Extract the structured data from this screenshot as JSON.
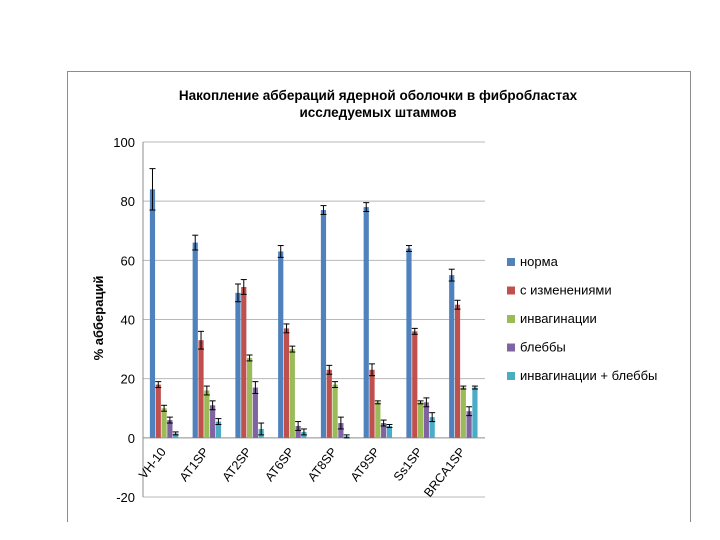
{
  "chart_data": {
    "type": "bar",
    "title_lines": [
      "Накопление аббераций ядерной оболочки в фибробластах",
      "исследуемых штаммов"
    ],
    "ylabel": "% аббераций",
    "xlabel": "",
    "ylim": [
      -20,
      100
    ],
    "yticks": [
      100,
      80,
      60,
      40,
      20,
      0,
      -20
    ],
    "grid": true,
    "legend_position": "right",
    "categories": [
      "VH-10",
      "AT1SP",
      "AT2SP",
      "AT6SP",
      "AT8SP",
      "AT9SP",
      "Ss1SP",
      "BRCA1SP"
    ],
    "series": [
      {
        "name": "норма",
        "color": "#4f81bd",
        "values": [
          84,
          66,
          49,
          63,
          77,
          78,
          64,
          55
        ],
        "errors": [
          7,
          2.5,
          3,
          2,
          1.5,
          1.5,
          1,
          2
        ]
      },
      {
        "name": "с изменениями",
        "color": "#c0504d",
        "values": [
          18,
          33,
          51,
          37,
          23,
          23,
          36,
          45
        ],
        "errors": [
          1,
          3,
          2.5,
          1.5,
          1.5,
          2,
          1,
          1.5
        ]
      },
      {
        "name": "инвагинации",
        "color": "#9bbb59",
        "values": [
          10,
          16,
          27,
          30,
          18,
          12,
          12,
          17
        ],
        "errors": [
          1,
          1.5,
          1,
          1,
          1,
          0.5,
          0.5,
          0.5
        ]
      },
      {
        "name": "блеббы",
        "color": "#8064a2",
        "values": [
          6,
          11,
          17,
          4,
          5,
          5,
          12,
          9
        ],
        "errors": [
          1,
          1.5,
          2,
          1.5,
          2,
          1,
          1.5,
          1.5
        ]
      },
      {
        "name": "инвагинации + блеббы",
        "color": "#4bacc6",
        "values": [
          1.5,
          5.5,
          3,
          2,
          0.5,
          4,
          7,
          17
        ],
        "errors": [
          0.5,
          1,
          2,
          1,
          0.5,
          0.5,
          1.5,
          0.5
        ]
      }
    ]
  }
}
